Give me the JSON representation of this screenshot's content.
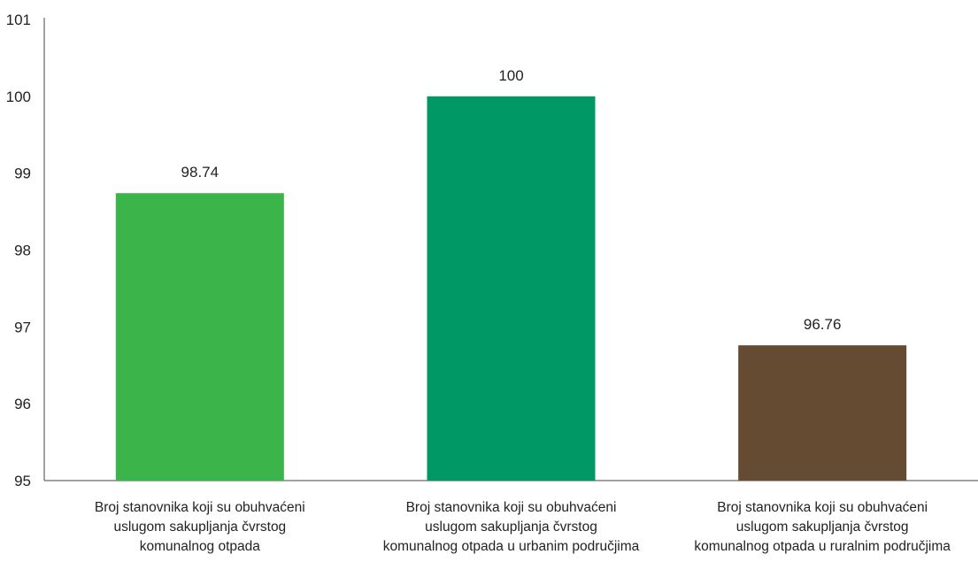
{
  "chart_data": {
    "type": "bar",
    "title": "",
    "xlabel": "",
    "ylabel": "",
    "ylim": [
      95,
      101
    ],
    "y_ticks": [
      95,
      96,
      97,
      98,
      99,
      100,
      101
    ],
    "grid": false,
    "legend": "none",
    "categories": [
      {
        "lines": [
          "Broj stanovnika koji su obuhvaćeni",
          "uslugom sakupljanja čvrstog",
          "komunalnog otpada"
        ]
      },
      {
        "lines": [
          "Broj stanovnika koji su obuhvaćeni",
          "uslugom sakupljanja čvrstog",
          "komunalnog otpada u urbanim područjima"
        ]
      },
      {
        "lines": [
          "Broj stanovnika koji su obuhvaćeni",
          "uslugom sakupljanja čvrstog",
          "komunalnog otpada u ruralnim područjima"
        ]
      }
    ],
    "values": [
      98.74,
      100,
      96.76
    ],
    "value_labels": [
      "98.74",
      "100",
      "96.76"
    ],
    "colors": [
      "#3bb44a",
      "#009864",
      "#664b33"
    ],
    "axis_color": "#444444"
  }
}
